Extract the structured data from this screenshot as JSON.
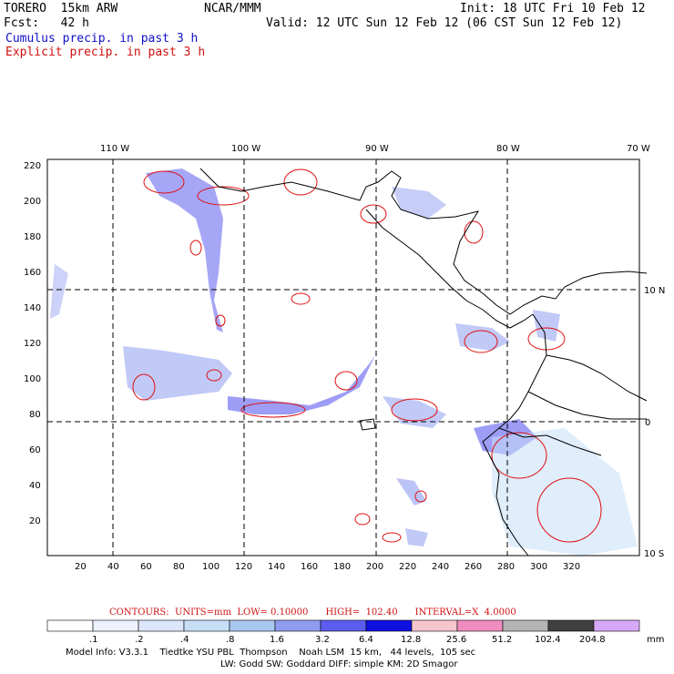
{
  "header": {
    "model": "TORERO  15km ARW",
    "org": "NCAR/MMM",
    "init": "Init: 18 UTC Fri 10 Feb 12",
    "fcst": "Fcst:   42 h",
    "valid": "Valid: 12 UTC Sun 12 Feb 12 (06 CST Sun 12 Feb 12)",
    "cumulus": "Cumulus precip. in past 3 h",
    "explicit": "Explicit precip. in past 3 h"
  },
  "axes": {
    "top_lon": [
      "110 W",
      "100 W",
      "90 W",
      "80 W",
      "70 W"
    ],
    "right_lat": [
      "10 N",
      "0",
      "10 S"
    ],
    "left_y": [
      "220",
      "200",
      "180",
      "160",
      "140",
      "120",
      "100",
      "80",
      "60",
      "40",
      "20"
    ],
    "bottom_x": [
      "20",
      "40",
      "60",
      "80",
      "100",
      "120",
      "140",
      "160",
      "180",
      "200",
      "220",
      "240",
      "260",
      "280",
      "300",
      "320"
    ]
  },
  "contours_line": "CONTOURS:  UNITS=mm  LOW= 0.10000      HIGH=  102.40      INTERVAL=X  4.0000",
  "legend": {
    "labels": [
      ".1",
      ".2",
      ".4",
      ".8",
      "1.6",
      "3.2",
      "6.4",
      "12.8",
      "25.6",
      "51.2",
      "102.4",
      "204.8"
    ],
    "unit": "mm",
    "colors": [
      "#ffffff",
      "#eef2ff",
      "#dbe6fb",
      "#c6dff7",
      "#a9c8f0",
      "#8e9cf0",
      "#5c5cf0",
      "#1010e0",
      "#f6c6cc",
      "#f08cc0",
      "#b4b4b4",
      "#404040",
      "#d8a8f8"
    ]
  },
  "footer": {
    "line1": "Model Info: V3.3.1    Tiedtke YSU PBL  Thompson    Noah LSM  15 km,   44 levels,  105 sec",
    "line2": "LW: Godd SW: Goddard DIFF: simple KM: 2D Smagor"
  }
}
